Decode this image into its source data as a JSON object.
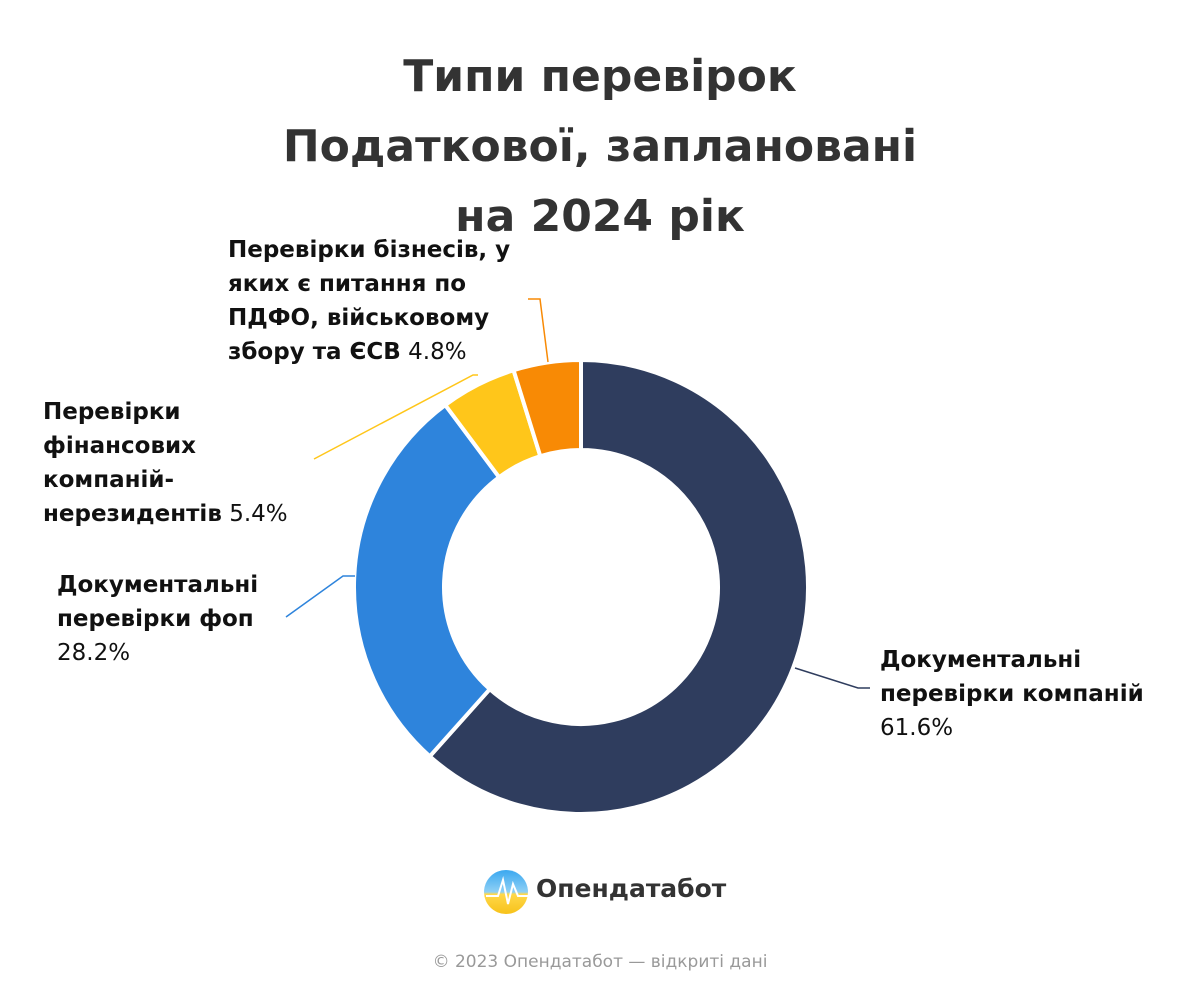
{
  "chart_data": {
    "type": "donut",
    "title": "Типи перевірок Податкової, заплановані на 2024 рік",
    "categories": [
      "Документальні перевірки компаній",
      "Документальні перевірки фоп",
      "Перевірки фінансових компаній-нерезидентів",
      "Перевірки бізнесів, у яких є питання по ПДФО, військовому збору та ЄСВ"
    ],
    "values": [
      61.6,
      28.2,
      5.4,
      4.8
    ],
    "value_labels": [
      "61.6%",
      "28.2%",
      "5.4%",
      "4.8%"
    ],
    "colors": [
      "#2f3d5e",
      "#2e84dc",
      "#ffc61a",
      "#f88a05"
    ]
  },
  "footer": {
    "brand": "Опендатабот",
    "copyright": "© 2023 Опендатабот — відкриті дані"
  }
}
